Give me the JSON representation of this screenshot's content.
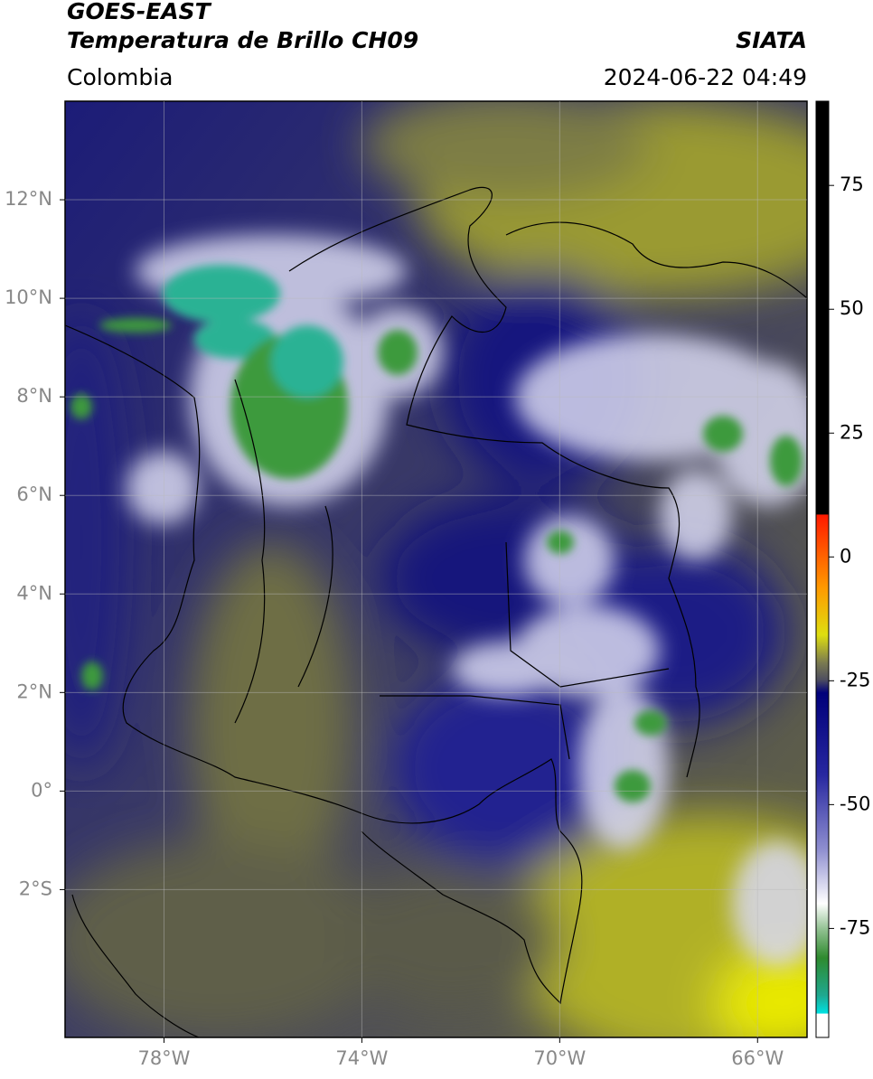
{
  "header": {
    "title": "GOES-EAST",
    "subtitle": "Temperatura de Brillo CH09",
    "source": "SIATA",
    "region": "Colombia",
    "datetime": "2024-06-22 04:49"
  },
  "map": {
    "xlim": [
      -80,
      -65
    ],
    "ylim": [
      -5,
      14
    ],
    "xticks": [
      {
        "value": -78,
        "label": "78°W"
      },
      {
        "value": -74,
        "label": "74°W"
      },
      {
        "value": -70,
        "label": "70°W"
      },
      {
        "value": -66,
        "label": "66°W"
      }
    ],
    "yticks": [
      {
        "value": 12,
        "label": "12°N"
      },
      {
        "value": 10,
        "label": "10°N"
      },
      {
        "value": 8,
        "label": "8°N"
      },
      {
        "value": 6,
        "label": "6°N"
      },
      {
        "value": 4,
        "label": "4°N"
      },
      {
        "value": 2,
        "label": "2°N"
      },
      {
        "value": 0,
        "label": "0°"
      },
      {
        "value": -2,
        "label": "2°S"
      }
    ],
    "grid": true
  },
  "colorbar": {
    "lim": [
      -97,
      92
    ],
    "ticks": [
      75,
      50,
      25,
      0,
      -25,
      -50,
      -75
    ]
  }
}
